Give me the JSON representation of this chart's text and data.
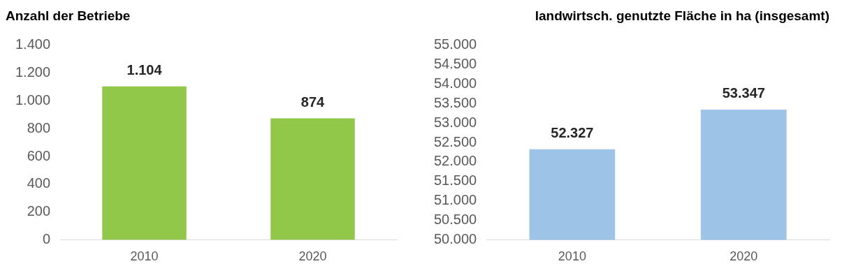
{
  "chart_data": [
    {
      "type": "bar",
      "title": "Anzahl der Betriebe",
      "categories": [
        "2010",
        "2020"
      ],
      "values": [
        1104,
        874
      ],
      "value_labels": [
        "1.104",
        "874"
      ],
      "color": "#92c84a",
      "ylim": [
        0,
        1400
      ],
      "yticks": [
        {
          "value": 0,
          "label": "0"
        },
        {
          "value": 200,
          "label": "200"
        },
        {
          "value": 400,
          "label": "400"
        },
        {
          "value": 600,
          "label": "600"
        },
        {
          "value": 800,
          "label": "800"
        },
        {
          "value": 1000,
          "label": "1.000"
        },
        {
          "value": 1200,
          "label": "1.200"
        },
        {
          "value": 1400,
          "label": "1.400"
        }
      ],
      "grid": false
    },
    {
      "type": "bar",
      "title": "landwirtsch. genutzte Fläche in ha (insgesamt)",
      "categories": [
        "2010",
        "2020"
      ],
      "values": [
        52327,
        53347
      ],
      "value_labels": [
        "52.327",
        "53.347"
      ],
      "color": "#9dc3e6",
      "ylim": [
        50000,
        55000
      ],
      "yticks": [
        {
          "value": 50000,
          "label": "50.000"
        },
        {
          "value": 50500,
          "label": "50.500"
        },
        {
          "value": 51000,
          "label": "51.000"
        },
        {
          "value": 51500,
          "label": "51.500"
        },
        {
          "value": 52000,
          "label": "52.000"
        },
        {
          "value": 52500,
          "label": "52.500"
        },
        {
          "value": 53000,
          "label": "53.000"
        },
        {
          "value": 53500,
          "label": "53.500"
        },
        {
          "value": 54000,
          "label": "54.000"
        },
        {
          "value": 54500,
          "label": "54.500"
        },
        {
          "value": 55000,
          "label": "55.000"
        }
      ],
      "grid": false
    }
  ]
}
